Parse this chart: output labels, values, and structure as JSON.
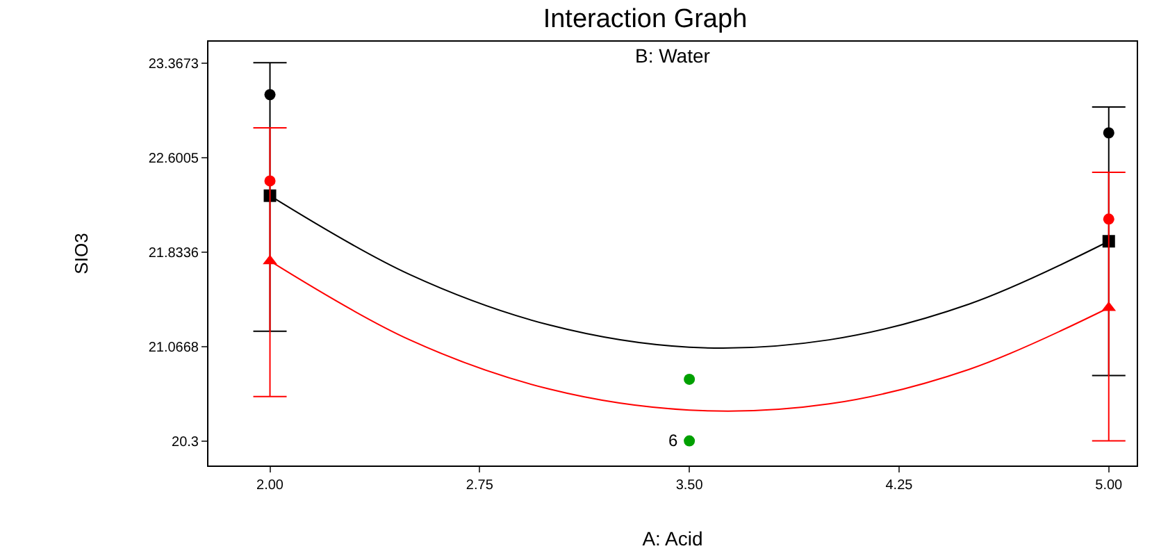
{
  "chart_data": {
    "type": "scatter",
    "title": "Interaction Graph",
    "subtitle": "B: Water",
    "xlabel": "A: Acid",
    "ylabel": "SIO3",
    "xlim": [
      1.78,
      5.1
    ],
    "ylim": [
      20.1,
      23.54
    ],
    "xticks": [
      {
        "value": 2,
        "label": "2.00"
      },
      {
        "value": 2.75,
        "label": "2.75"
      },
      {
        "value": 3.5,
        "label": "3.50"
      },
      {
        "value": 4.25,
        "label": "4.25"
      },
      {
        "value": 5,
        "label": "5.00"
      }
    ],
    "yticks": [
      20.3,
      21.0668,
      21.8336,
      22.6005,
      23.3673
    ],
    "series": [
      {
        "type": "line",
        "color": "#000000",
        "marker": "none",
        "x": [
          2,
          2.5,
          3,
          3.5,
          4,
          4.5,
          5
        ],
        "values": [
          22.29,
          21.65,
          21.24,
          21.06,
          21.12,
          21.41,
          21.92
        ]
      },
      {
        "type": "line",
        "color": "#ff0000",
        "marker": "none",
        "x": [
          2,
          2.5,
          3,
          3.5,
          4,
          4.5,
          5
        ],
        "values": [
          21.76,
          21.12,
          20.72,
          20.55,
          20.6,
          20.88,
          21.38
        ]
      },
      {
        "color": "#000000",
        "marker": "square",
        "x": [
          2,
          5
        ],
        "values": [
          22.29,
          21.92
        ],
        "errors": [
          [
            21.19,
            23.37
          ],
          [
            20.83,
            23.01
          ]
        ]
      },
      {
        "color": "#ff0000",
        "marker": "triangle",
        "x": [
          2,
          5
        ],
        "values": [
          21.76,
          21.38
        ],
        "errors": [
          [
            20.66,
            22.84
          ],
          [
            20.3,
            22.48
          ]
        ]
      },
      {
        "color": "#000000",
        "marker": "circle",
        "x": [
          2,
          5
        ],
        "values": [
          23.11,
          22.8
        ]
      },
      {
        "color": "#ff0000",
        "marker": "circle",
        "x": [
          2,
          5
        ],
        "values": [
          22.41,
          22.1
        ]
      },
      {
        "color": "#00a000",
        "marker": "circle",
        "x": [
          3.5,
          3.5
        ],
        "values": [
          20.8,
          20.3
        ]
      }
    ],
    "annotations": [
      {
        "text": "6",
        "x": 3.5,
        "y": 20.3
      }
    ]
  }
}
